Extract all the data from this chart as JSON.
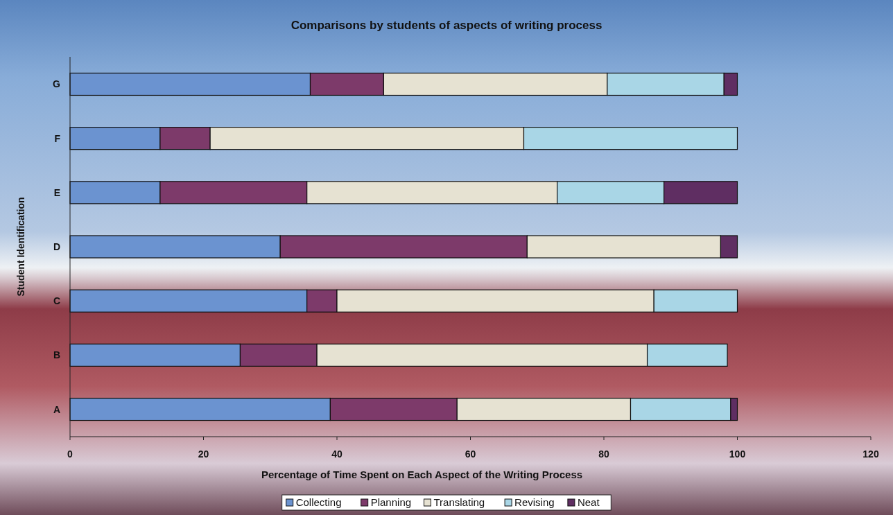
{
  "chart_data": {
    "type": "bar",
    "orientation": "horizontal",
    "stacked": true,
    "title": "Comparisons by students of aspects of writing process",
    "xlabel": "Percentage of Time Spent on Each Aspect of the Writing Process",
    "ylabel": "Student Identification",
    "categories": [
      "G",
      "F",
      "E",
      "D",
      "C",
      "B",
      "A"
    ],
    "series": [
      {
        "name": "Collecting",
        "color": "#6b93d0",
        "values": [
          36,
          13.5,
          13.5,
          31.5,
          35.5,
          25.5,
          39
        ]
      },
      {
        "name": "Planning",
        "color": "#7d3a6a",
        "values": [
          11,
          7.5,
          22,
          37,
          4.5,
          11.5,
          19
        ]
      },
      {
        "name": "Translating",
        "color": "#e6e2d2",
        "values": [
          33.5,
          47,
          37.5,
          29,
          47.5,
          49.5,
          26
        ]
      },
      {
        "name": "Revising",
        "color": "#a9d6e6",
        "values": [
          17.5,
          32,
          16,
          0,
          12.5,
          12,
          15
        ]
      },
      {
        "name": "Neat",
        "color": "#5f2e62",
        "values": [
          2,
          0,
          11,
          2.5,
          0,
          0,
          1
        ]
      }
    ],
    "xlim": [
      0,
      120
    ],
    "xticks": [
      0,
      20,
      40,
      60,
      80,
      100,
      120
    ],
    "legend": "bottom",
    "grid": false
  }
}
